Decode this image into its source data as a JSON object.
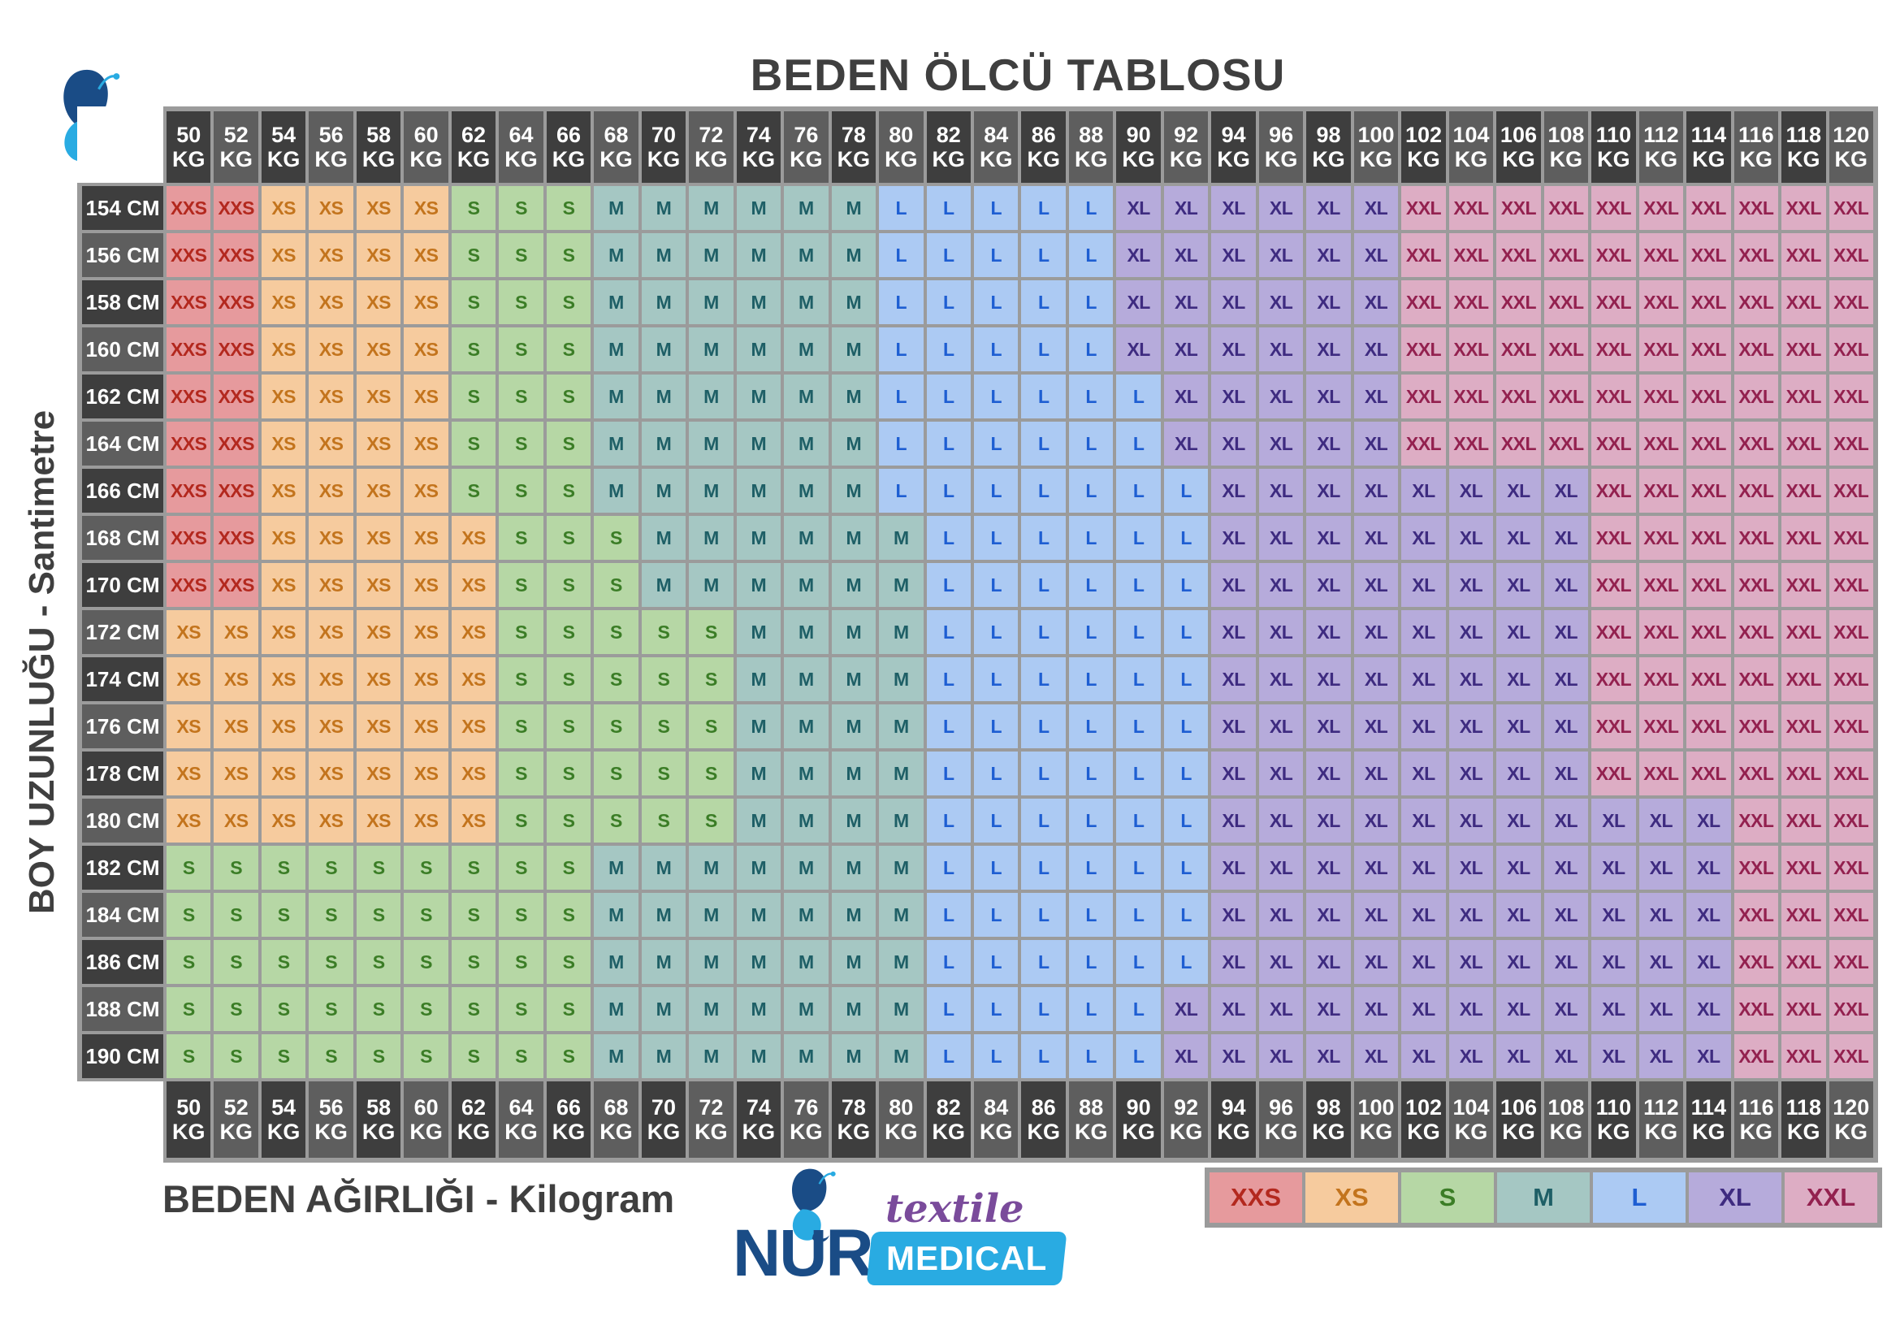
{
  "title": "BEDEN ÖLCÜ TABLOSU",
  "x_axis_label": "BEDEN AĞIRLIĞI - Kilogram",
  "y_axis_label": "BOY UZUNLUĞU - Santimetre",
  "weight_unit": "KG",
  "height_unit": "CM",
  "logo": {
    "name": "NUR",
    "tagline": "textile",
    "banner": "MEDICAL"
  },
  "legend": [
    "XXS",
    "XS",
    "S",
    "M",
    "L",
    "XL",
    "XXL"
  ],
  "colors": {
    "grid_line": "#9B9B9B",
    "header_dark": "#3E3E3E",
    "header_light": "#5E5E5E",
    "header_text": "#FFFFFF",
    "label_text": "#3F3F3F",
    "logo_navy": "#1A4C86",
    "logo_light_blue": "#29ABE2",
    "logo_purple": "#7A4B9B",
    "sizes": {
      "XXS": {
        "bg": "#E69A9D",
        "fg": "#B3281E"
      },
      "XS": {
        "bg": "#F6CB9E",
        "fg": "#C3741D"
      },
      "S": {
        "bg": "#B6D7A5",
        "fg": "#3B7D26"
      },
      "M": {
        "bg": "#A5C7C3",
        "fg": "#1E5F66"
      },
      "L": {
        "bg": "#ACCAF3",
        "fg": "#1E5ED2"
      },
      "XL": {
        "bg": "#B6ABDB",
        "fg": "#3E2B80"
      },
      "XXL": {
        "bg": "#DDADC4",
        "fg": "#93214F"
      }
    }
  },
  "chart_data": {
    "type": "heatmap",
    "title": "BEDEN ÖLCÜ TABLOSU",
    "x": {
      "label": "BEDEN AĞIRLIĞI - Kilogram",
      "unit": "KG",
      "values": [
        50,
        52,
        54,
        56,
        58,
        60,
        62,
        64,
        66,
        68,
        70,
        72,
        74,
        76,
        78,
        80,
        82,
        84,
        86,
        88,
        90,
        92,
        94,
        96,
        98,
        100,
        102,
        104,
        106,
        108,
        110,
        112,
        114,
        116,
        118,
        120
      ]
    },
    "y": {
      "label": "BOY UZUNLUĞU - Santimetre",
      "unit": "CM",
      "values": [
        154,
        156,
        158,
        160,
        162,
        164,
        166,
        168,
        170,
        172,
        174,
        176,
        178,
        180,
        182,
        184,
        186,
        188,
        190
      ]
    },
    "legend_items": [
      "XXS",
      "XS",
      "S",
      "M",
      "L",
      "XL",
      "XXL"
    ],
    "grid": [
      [
        "XXS",
        "XXS",
        "XS",
        "XS",
        "XS",
        "XS",
        "S",
        "S",
        "S",
        "M",
        "M",
        "M",
        "M",
        "M",
        "M",
        "L",
        "L",
        "L",
        "L",
        "L",
        "XL",
        "XL",
        "XL",
        "XL",
        "XL",
        "XL",
        "XXL",
        "XXL",
        "XXL",
        "XXL",
        "XXL",
        "XXL",
        "XXL",
        "XXL",
        "XXL",
        "XXL"
      ],
      [
        "XXS",
        "XXS",
        "XS",
        "XS",
        "XS",
        "XS",
        "S",
        "S",
        "S",
        "M",
        "M",
        "M",
        "M",
        "M",
        "M",
        "L",
        "L",
        "L",
        "L",
        "L",
        "XL",
        "XL",
        "XL",
        "XL",
        "XL",
        "XL",
        "XXL",
        "XXL",
        "XXL",
        "XXL",
        "XXL",
        "XXL",
        "XXL",
        "XXL",
        "XXL",
        "XXL"
      ],
      [
        "XXS",
        "XXS",
        "XS",
        "XS",
        "XS",
        "XS",
        "S",
        "S",
        "S",
        "M",
        "M",
        "M",
        "M",
        "M",
        "M",
        "L",
        "L",
        "L",
        "L",
        "L",
        "XL",
        "XL",
        "XL",
        "XL",
        "XL",
        "XL",
        "XXL",
        "XXL",
        "XXL",
        "XXL",
        "XXL",
        "XXL",
        "XXL",
        "XXL",
        "XXL",
        "XXL"
      ],
      [
        "XXS",
        "XXS",
        "XS",
        "XS",
        "XS",
        "XS",
        "S",
        "S",
        "S",
        "M",
        "M",
        "M",
        "M",
        "M",
        "M",
        "L",
        "L",
        "L",
        "L",
        "L",
        "XL",
        "XL",
        "XL",
        "XL",
        "XL",
        "XL",
        "XXL",
        "XXL",
        "XXL",
        "XXL",
        "XXL",
        "XXL",
        "XXL",
        "XXL",
        "XXL",
        "XXL"
      ],
      [
        "XXS",
        "XXS",
        "XS",
        "XS",
        "XS",
        "XS",
        "S",
        "S",
        "S",
        "M",
        "M",
        "M",
        "M",
        "M",
        "M",
        "L",
        "L",
        "L",
        "L",
        "L",
        "L",
        "XL",
        "XL",
        "XL",
        "XL",
        "XL",
        "XXL",
        "XXL",
        "XXL",
        "XXL",
        "XXL",
        "XXL",
        "XXL",
        "XXL",
        "XXL",
        "XXL"
      ],
      [
        "XXS",
        "XXS",
        "XS",
        "XS",
        "XS",
        "XS",
        "S",
        "S",
        "S",
        "M",
        "M",
        "M",
        "M",
        "M",
        "M",
        "L",
        "L",
        "L",
        "L",
        "L",
        "L",
        "XL",
        "XL",
        "XL",
        "XL",
        "XL",
        "XXL",
        "XXL",
        "XXL",
        "XXL",
        "XXL",
        "XXL",
        "XXL",
        "XXL",
        "XXL",
        "XXL"
      ],
      [
        "XXS",
        "XXS",
        "XS",
        "XS",
        "XS",
        "XS",
        "S",
        "S",
        "S",
        "M",
        "M",
        "M",
        "M",
        "M",
        "M",
        "L",
        "L",
        "L",
        "L",
        "L",
        "L",
        "L",
        "XL",
        "XL",
        "XL",
        "XL",
        "XL",
        "XL",
        "XL",
        "XL",
        "XXL",
        "XXL",
        "XXL",
        "XXL",
        "XXL",
        "XXL"
      ],
      [
        "XXS",
        "XXS",
        "XS",
        "XS",
        "XS",
        "XS",
        "XS",
        "S",
        "S",
        "S",
        "M",
        "M",
        "M",
        "M",
        "M",
        "M",
        "L",
        "L",
        "L",
        "L",
        "L",
        "L",
        "XL",
        "XL",
        "XL",
        "XL",
        "XL",
        "XL",
        "XL",
        "XL",
        "XXL",
        "XXL",
        "XXL",
        "XXL",
        "XXL",
        "XXL"
      ],
      [
        "XXS",
        "XXS",
        "XS",
        "XS",
        "XS",
        "XS",
        "XS",
        "S",
        "S",
        "S",
        "M",
        "M",
        "M",
        "M",
        "M",
        "M",
        "L",
        "L",
        "L",
        "L",
        "L",
        "L",
        "XL",
        "XL",
        "XL",
        "XL",
        "XL",
        "XL",
        "XL",
        "XL",
        "XXL",
        "XXL",
        "XXL",
        "XXL",
        "XXL",
        "XXL"
      ],
      [
        "XS",
        "XS",
        "XS",
        "XS",
        "XS",
        "XS",
        "XS",
        "S",
        "S",
        "S",
        "S",
        "S",
        "M",
        "M",
        "M",
        "M",
        "L",
        "L",
        "L",
        "L",
        "L",
        "L",
        "XL",
        "XL",
        "XL",
        "XL",
        "XL",
        "XL",
        "XL",
        "XL",
        "XXL",
        "XXL",
        "XXL",
        "XXL",
        "XXL",
        "XXL"
      ],
      [
        "XS",
        "XS",
        "XS",
        "XS",
        "XS",
        "XS",
        "XS",
        "S",
        "S",
        "S",
        "S",
        "S",
        "M",
        "M",
        "M",
        "M",
        "L",
        "L",
        "L",
        "L",
        "L",
        "L",
        "XL",
        "XL",
        "XL",
        "XL",
        "XL",
        "XL",
        "XL",
        "XL",
        "XXL",
        "XXL",
        "XXL",
        "XXL",
        "XXL",
        "XXL"
      ],
      [
        "XS",
        "XS",
        "XS",
        "XS",
        "XS",
        "XS",
        "XS",
        "S",
        "S",
        "S",
        "S",
        "S",
        "M",
        "M",
        "M",
        "M",
        "L",
        "L",
        "L",
        "L",
        "L",
        "L",
        "XL",
        "XL",
        "XL",
        "XL",
        "XL",
        "XL",
        "XL",
        "XL",
        "XXL",
        "XXL",
        "XXL",
        "XXL",
        "XXL",
        "XXL"
      ],
      [
        "XS",
        "XS",
        "XS",
        "XS",
        "XS",
        "XS",
        "XS",
        "S",
        "S",
        "S",
        "S",
        "S",
        "M",
        "M",
        "M",
        "M",
        "L",
        "L",
        "L",
        "L",
        "L",
        "L",
        "XL",
        "XL",
        "XL",
        "XL",
        "XL",
        "XL",
        "XL",
        "XL",
        "XXL",
        "XXL",
        "XXL",
        "XXL",
        "XXL",
        "XXL"
      ],
      [
        "XS",
        "XS",
        "XS",
        "XS",
        "XS",
        "XS",
        "XS",
        "S",
        "S",
        "S",
        "S",
        "S",
        "M",
        "M",
        "M",
        "M",
        "L",
        "L",
        "L",
        "L",
        "L",
        "L",
        "XL",
        "XL",
        "XL",
        "XL",
        "XL",
        "XL",
        "XL",
        "XL",
        "XL",
        "XL",
        "XL",
        "XXL",
        "XXL",
        "XXL"
      ],
      [
        "S",
        "S",
        "S",
        "S",
        "S",
        "S",
        "S",
        "S",
        "S",
        "M",
        "M",
        "M",
        "M",
        "M",
        "M",
        "M",
        "L",
        "L",
        "L",
        "L",
        "L",
        "L",
        "XL",
        "XL",
        "XL",
        "XL",
        "XL",
        "XL",
        "XL",
        "XL",
        "XL",
        "XL",
        "XL",
        "XXL",
        "XXL",
        "XXL"
      ],
      [
        "S",
        "S",
        "S",
        "S",
        "S",
        "S",
        "S",
        "S",
        "S",
        "M",
        "M",
        "M",
        "M",
        "M",
        "M",
        "M",
        "L",
        "L",
        "L",
        "L",
        "L",
        "L",
        "XL",
        "XL",
        "XL",
        "XL",
        "XL",
        "XL",
        "XL",
        "XL",
        "XL",
        "XL",
        "XL",
        "XXL",
        "XXL",
        "XXL"
      ],
      [
        "S",
        "S",
        "S",
        "S",
        "S",
        "S",
        "S",
        "S",
        "S",
        "M",
        "M",
        "M",
        "M",
        "M",
        "M",
        "M",
        "L",
        "L",
        "L",
        "L",
        "L",
        "L",
        "XL",
        "XL",
        "XL",
        "XL",
        "XL",
        "XL",
        "XL",
        "XL",
        "XL",
        "XL",
        "XL",
        "XXL",
        "XXL",
        "XXL"
      ],
      [
        "S",
        "S",
        "S",
        "S",
        "S",
        "S",
        "S",
        "S",
        "S",
        "M",
        "M",
        "M",
        "M",
        "M",
        "M",
        "M",
        "L",
        "L",
        "L",
        "L",
        "L",
        "XL",
        "XL",
        "XL",
        "XL",
        "XL",
        "XL",
        "XL",
        "XL",
        "XL",
        "XL",
        "XL",
        "XL",
        "XXL",
        "XXL",
        "XXL"
      ],
      [
        "S",
        "S",
        "S",
        "S",
        "S",
        "S",
        "S",
        "S",
        "S",
        "M",
        "M",
        "M",
        "M",
        "M",
        "M",
        "M",
        "L",
        "L",
        "L",
        "L",
        "L",
        "XL",
        "XL",
        "XL",
        "XL",
        "XL",
        "XL",
        "XL",
        "XL",
        "XL",
        "XL",
        "XL",
        "XL",
        "XXL",
        "XXL",
        "XXL"
      ]
    ]
  }
}
